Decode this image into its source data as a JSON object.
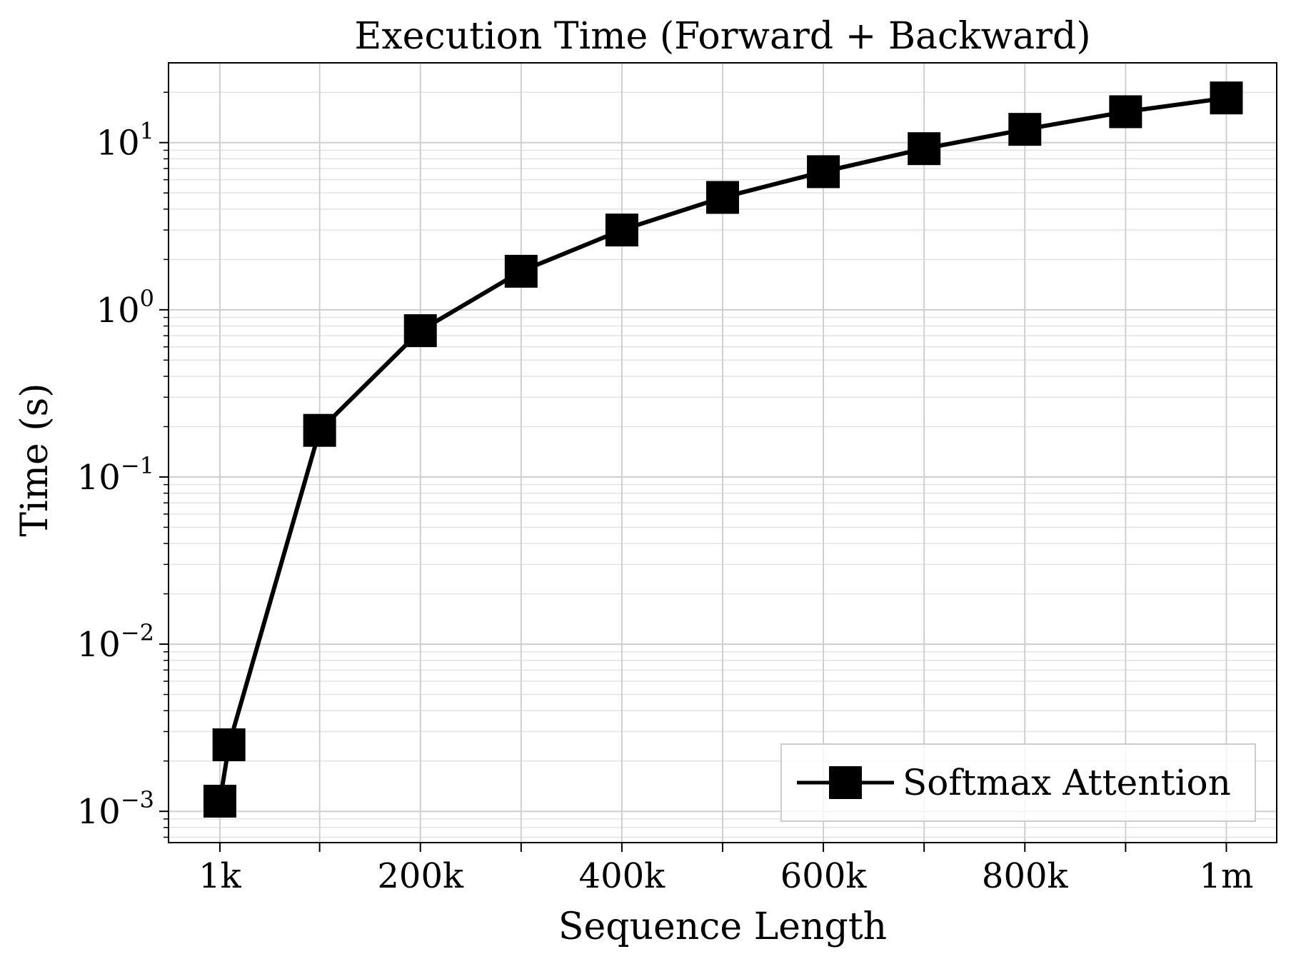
{
  "chart_data": {
    "type": "line",
    "title": "Execution Time (Forward + Backward)",
    "xlabel": "Sequence Length",
    "ylabel": "Time (s)",
    "xscale": "linear",
    "yscale": "log",
    "xlim": [
      -50000,
      1050000
    ],
    "ylim": [
      0.00065,
      30
    ],
    "x_ticks": [
      {
        "value": 1000,
        "label": "1k"
      },
      {
        "value": 100000,
        "label": ""
      },
      {
        "value": 200000,
        "label": "200k"
      },
      {
        "value": 300000,
        "label": ""
      },
      {
        "value": 400000,
        "label": "400k"
      },
      {
        "value": 500000,
        "label": ""
      },
      {
        "value": 600000,
        "label": "600k"
      },
      {
        "value": 700000,
        "label": ""
      },
      {
        "value": 800000,
        "label": "800k"
      },
      {
        "value": 900000,
        "label": ""
      },
      {
        "value": 1000000,
        "label": "1m"
      }
    ],
    "y_ticks": [
      {
        "value": 0.001,
        "base": "10",
        "exp": "−3"
      },
      {
        "value": 0.01,
        "base": "10",
        "exp": "−2"
      },
      {
        "value": 0.1,
        "base": "10",
        "exp": "−1"
      },
      {
        "value": 1,
        "base": "10",
        "exp": "0"
      },
      {
        "value": 10,
        "base": "10",
        "exp": "1"
      }
    ],
    "grid": true,
    "minor_grid": true,
    "legend_position": "bottom-right",
    "series": [
      {
        "name": "Softmax Attention",
        "color": "#000000",
        "marker": "square",
        "x": [
          1000,
          10000,
          100000,
          200000,
          300000,
          400000,
          500000,
          600000,
          700000,
          800000,
          900000,
          1000000
        ],
        "y": [
          0.00115,
          0.0025,
          0.19,
          0.75,
          1.7,
          3.0,
          4.7,
          6.7,
          9.2,
          12.0,
          15.3,
          18.5
        ]
      }
    ]
  }
}
